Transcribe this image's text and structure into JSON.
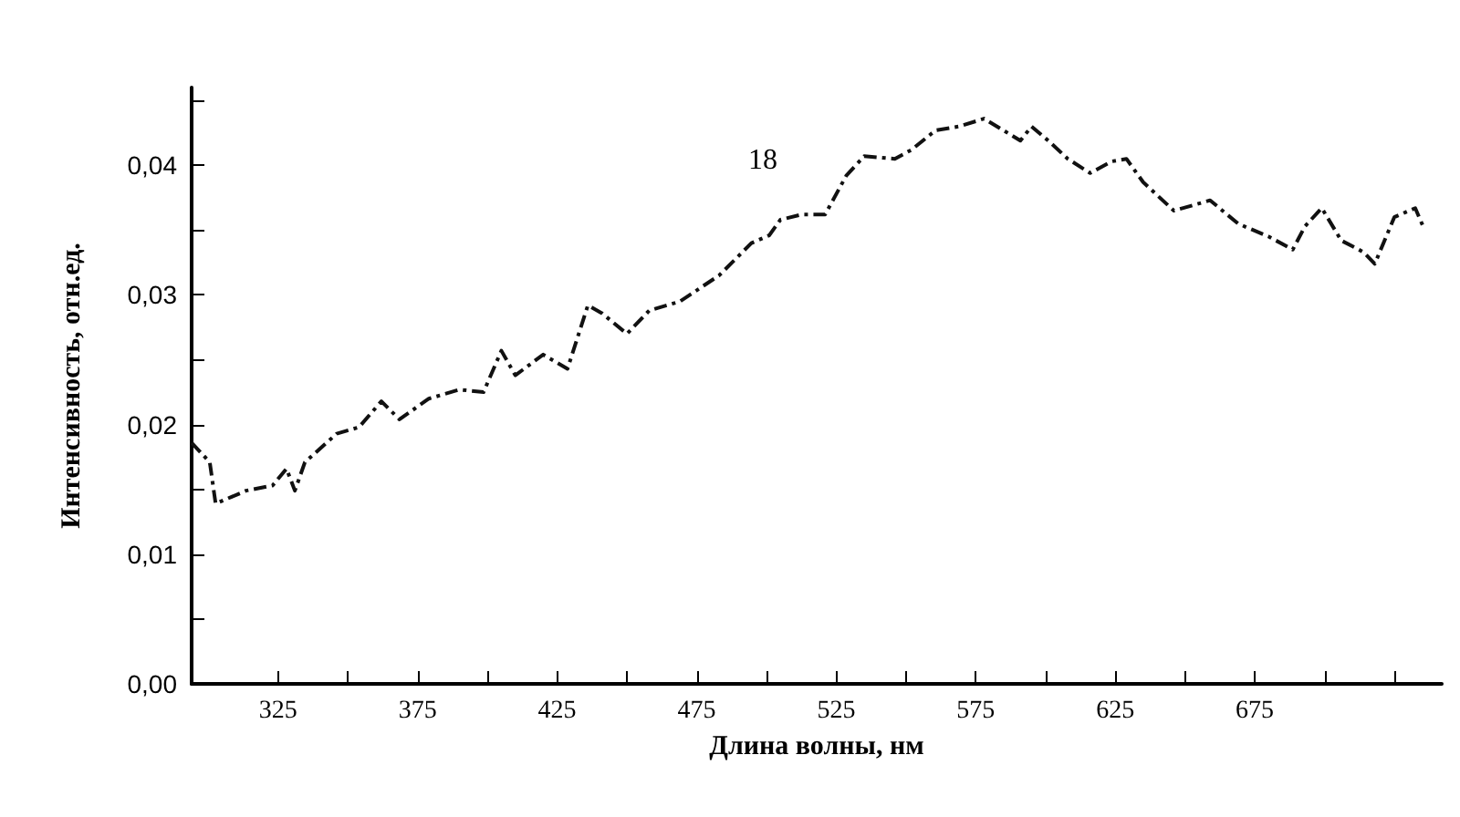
{
  "chart_data": {
    "type": "line",
    "xlabel": "Длина волны, нм",
    "ylabel": "Интенсивность, отн.ед.",
    "x": [
      294,
      300.5,
      302.6,
      313.5,
      323,
      328,
      331,
      334.6,
      346,
      354,
      362,
      368.5,
      379,
      390,
      398.6,
      405,
      410,
      420,
      428.7,
      436,
      441,
      450,
      458,
      469,
      483,
      494.6,
      501,
      505,
      512.5,
      521,
      528.6,
      535,
      546,
      552,
      560.6,
      569,
      578,
      591,
      595,
      601,
      608,
      616,
      623.6,
      629,
      635,
      646,
      659,
      669,
      680,
      688.6,
      693,
      699,
      706,
      714,
      718,
      725,
      732.5,
      735.7
    ],
    "series": [
      {
        "color": "#111111",
        "values": [
          0.0186,
          0.0171,
          0.0139,
          0.0149,
          0.0153,
          0.0166,
          0.0149,
          0.0171,
          0.0193,
          0.0198,
          0.0218,
          0.0204,
          0.022,
          0.0227,
          0.0225,
          0.0257,
          0.0238,
          0.0254,
          0.0243,
          0.0292,
          0.0286,
          0.027,
          0.0288,
          0.0295,
          0.0315,
          0.034,
          0.0346,
          0.0358,
          0.0362,
          0.0362,
          0.0392,
          0.0407,
          0.0405,
          0.0412,
          0.0427,
          0.043,
          0.0436,
          0.0419,
          0.043,
          0.0419,
          0.0405,
          0.0394,
          0.0403,
          0.0405,
          0.0387,
          0.0365,
          0.0373,
          0.0355,
          0.0345,
          0.0335,
          0.0353,
          0.0367,
          0.0342,
          0.0333,
          0.0324,
          0.036,
          0.0367,
          0.0351
        ]
      }
    ],
    "xlim": [
      294,
      742
    ],
    "xticks": [
      325,
      {
        "value": 350,
        "label": null
      },
      375,
      {
        "value": 400,
        "label": null
      },
      425,
      {
        "value": 450,
        "label": null
      },
      475,
      {
        "value": 500,
        "label": null
      },
      525,
      {
        "value": 550,
        "label": null
      },
      575,
      {
        "value": 600,
        "label": null
      },
      625,
      {
        "value": 650,
        "label": null
      },
      675,
      {
        "value": 700,
        "label": null
      },
      {
        "value": 725,
        "label": null
      }
    ],
    "ylim": [
      0,
      0.046
    ],
    "yticks": [
      {
        "value": 0,
        "label": "0,00"
      },
      {
        "value": 0.005,
        "label": null
      },
      {
        "value": 0.01,
        "label": "0,01"
      },
      {
        "value": 0.015,
        "label": null
      },
      {
        "value": 0.02,
        "label": "0,02"
      },
      {
        "value": 0.025,
        "label": null
      },
      {
        "value": 0.03,
        "label": "0,03"
      },
      {
        "value": 0.035,
        "label": null
      },
      {
        "value": 0.04,
        "label": "0,04"
      },
      {
        "value": 0.045,
        "label": null
      }
    ],
    "annotations": [
      "18"
    ],
    "grid": false,
    "marker": "none",
    "line_style": "dashed"
  }
}
